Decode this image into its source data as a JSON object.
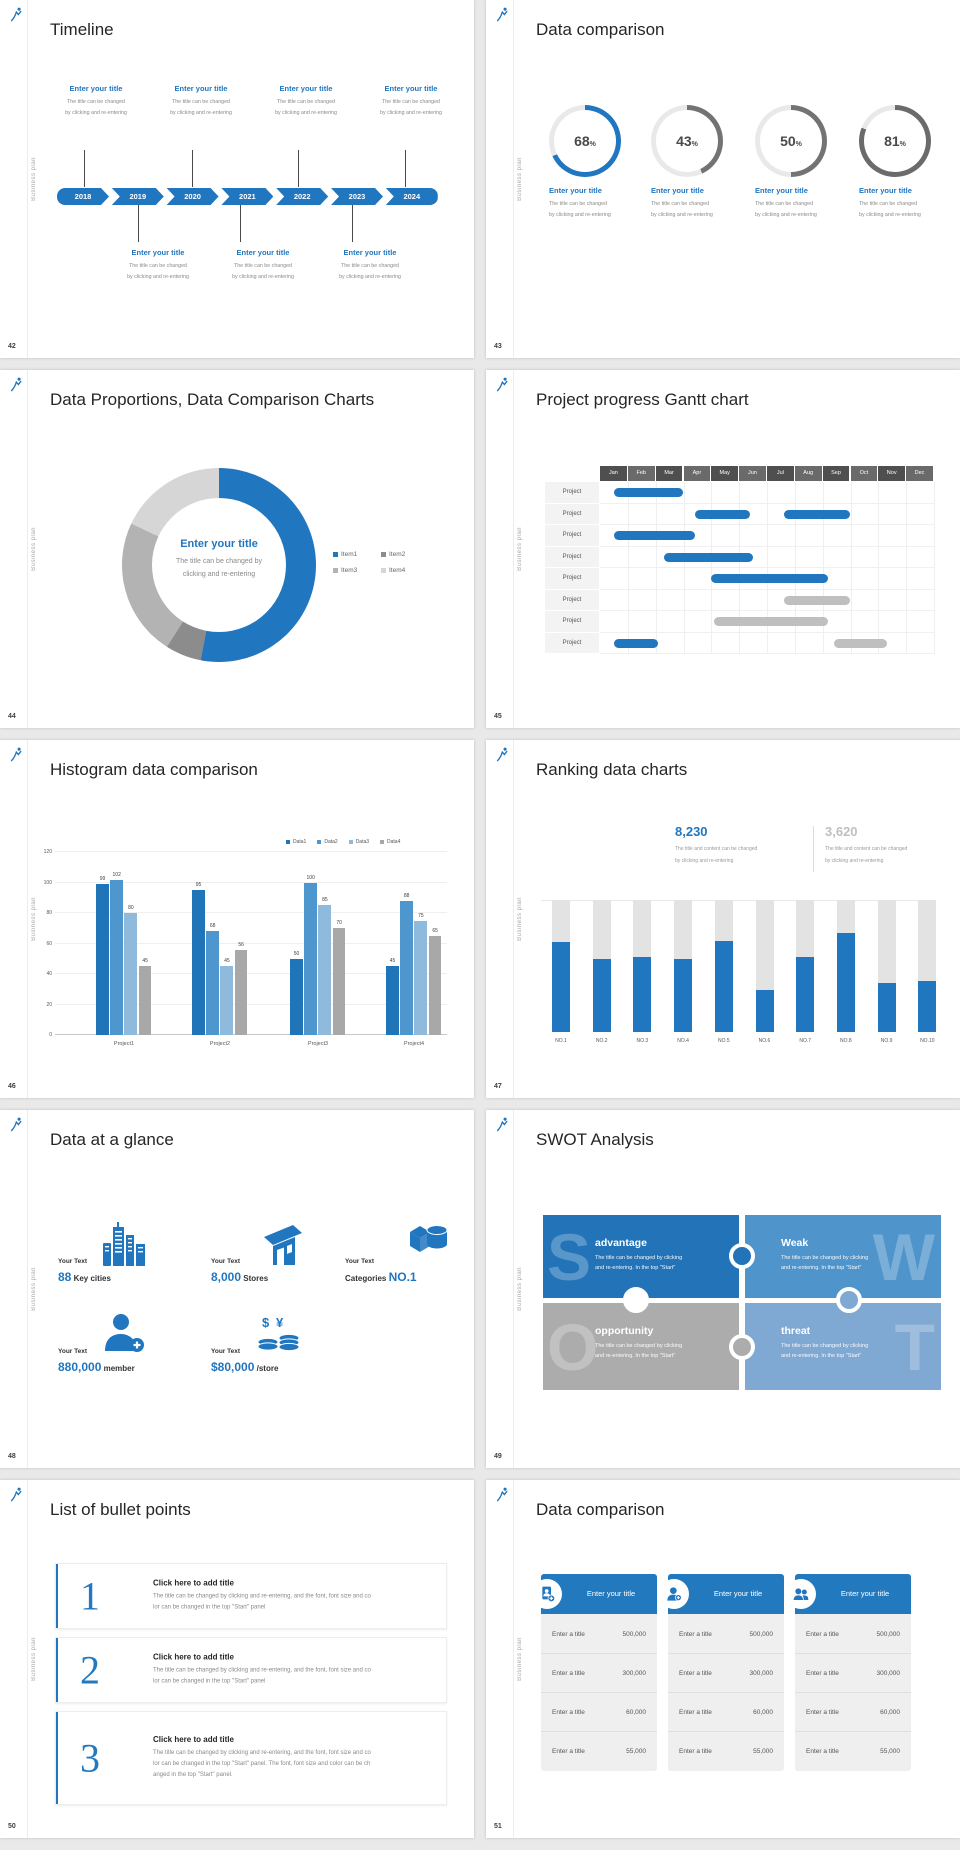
{
  "app": {
    "background": "#E9E9E9",
    "accent_color": "#2176C0"
  },
  "common": {
    "brand_vertical_text": "Business plan",
    "logo_icon": "leap-figure-logo-icon"
  },
  "slides": {
    "timeline": {
      "number": "42",
      "title": "Timeline",
      "item_title": "Enter your title",
      "item_line1": "The title can be changed",
      "item_line2": "by clicking and re-entering",
      "years": [
        "2018",
        "2019",
        "2020",
        "2021",
        "2022",
        "2023",
        "2024"
      ]
    },
    "rings": {
      "number": "43",
      "title": "Data comparison",
      "item_title": "Enter your title",
      "item_line1": "The title can be changed",
      "item_line2": "by clicking and re-entering"
    },
    "donut": {
      "number": "44",
      "title": "Data Proportions, Data Comparison Charts",
      "center_title": "Enter your title",
      "center_line1": "The title can be changed by",
      "center_line2": "clicking and re-entering"
    },
    "gantt": {
      "number": "45",
      "title": "Project progress Gantt chart"
    },
    "histogram": {
      "number": "46",
      "title": "Histogram data comparison"
    },
    "ranking": {
      "number": "47",
      "title": "Ranking data charts"
    },
    "glance": {
      "number": "48",
      "title": "Data at a glance",
      "item_label": "Your Text",
      "items": [
        {
          "pre": "",
          "value": "88",
          "post": "Key cities",
          "icon": "city-buildings-icon"
        },
        {
          "pre": "",
          "value": "8,000",
          "post": "Stores",
          "icon": "store-icon"
        },
        {
          "pre": "Categories",
          "value": "NO.1",
          "post": "",
          "icon": "goods-boxes-icon"
        },
        {
          "pre": "",
          "value": "880,000",
          "post": "member",
          "icon": "member-add-icon"
        },
        {
          "pre": "",
          "value": "$80,000",
          "post": "/store",
          "icon": "money-coins-icon"
        }
      ]
    },
    "swot": {
      "number": "49",
      "title": "SWOT Analysis",
      "body_line1": "The title can be changed by clicking",
      "body_line2": "and re-entering. In the top \"Start\"",
      "quadrants": [
        {
          "letter": "S",
          "label": "advantage",
          "color": "#2273B7"
        },
        {
          "letter": "W",
          "label": "Weak",
          "color": "#4F94CB"
        },
        {
          "letter": "O",
          "label": "opportunity",
          "color": "#ACACAC"
        },
        {
          "letter": "T",
          "label": "threat",
          "color": "#7FA8D3"
        }
      ]
    },
    "bullets": {
      "number": "50",
      "title": "List of bullet points",
      "items": [
        {
          "num": "1",
          "heading": "Click here to add title",
          "lines": [
            "The title can be changed by clicking and re-entering, and the font, font size and co",
            "lor can be changed in the top \"Start\" panel"
          ]
        },
        {
          "num": "2",
          "heading": "Click here to add title",
          "lines": [
            "The title can be changed by clicking and re-entering, and the font, font size and co",
            "lor can be changed in the top \"Start\" panel"
          ]
        },
        {
          "num": "3",
          "heading": "Click here to add title",
          "lines": [
            "The title can be changed by clicking and re-entering, and the font, font size and co",
            "lor can be changed in the top \"Start\" panel. The font, font size and color can be ch",
            "anged in the top \"Start\" panel."
          ]
        }
      ]
    },
    "tables": {
      "number": "51",
      "title": "Data comparison",
      "header": "Enter your title",
      "icons": [
        "id-card-add-icon",
        "person-add-icon",
        "people-group-icon"
      ],
      "rows": [
        {
          "label": "Enter a title",
          "value": "500,000"
        },
        {
          "label": "Enter a title",
          "value": "300,000"
        },
        {
          "label": "Enter a title",
          "value": "60,000"
        },
        {
          "label": "Enter a title",
          "value": "55,000"
        }
      ]
    }
  },
  "chart_data": [
    {
      "id": "progress-rings",
      "slide": "43",
      "type": "pie",
      "subtype": "progress-donuts",
      "values": [
        68,
        43,
        50,
        81
      ],
      "unit": "%",
      "colors": [
        "#2176C0",
        "#737373",
        "#737373",
        "#6B6B6B"
      ],
      "track_color": "#E9E9E9",
      "labels": [
        "Enter your title",
        "Enter your title",
        "Enter your title",
        "Enter your title"
      ]
    },
    {
      "id": "donut",
      "slide": "44",
      "type": "pie",
      "subtype": "donut",
      "legend": [
        "Item1",
        "Item2",
        "Item3",
        "Item4"
      ],
      "values": [
        53,
        6,
        23,
        18
      ],
      "colors": [
        "#2176C0",
        "#8C8C8C",
        "#B3B3B3",
        "#D6D6D6"
      ],
      "legend_position": "right"
    },
    {
      "id": "gantt",
      "slide": "45",
      "type": "gantt",
      "x": [
        "Jan",
        "Feb",
        "Mar",
        "Apr",
        "May",
        "Jun",
        "Jul",
        "Aug",
        "Sep",
        "Oct",
        "Nov",
        "Dec"
      ],
      "rows": [
        {
          "label": "Project",
          "bars": [
            {
              "start": 0.5,
              "end": 3.0,
              "color": "#2176C0"
            }
          ]
        },
        {
          "label": "Project",
          "bars": [
            {
              "start": 3.4,
              "end": 5.4,
              "color": "#2176C0"
            },
            {
              "start": 6.6,
              "end": 9.0,
              "color": "#2176C0"
            }
          ]
        },
        {
          "label": "Project",
          "bars": [
            {
              "start": 0.5,
              "end": 3.4,
              "color": "#2176C0"
            }
          ]
        },
        {
          "label": "Project",
          "bars": [
            {
              "start": 2.3,
              "end": 5.5,
              "color": "#2176C0"
            }
          ]
        },
        {
          "label": "Project",
          "bars": [
            {
              "start": 4.0,
              "end": 8.2,
              "color": "#2176C0"
            }
          ]
        },
        {
          "label": "Project",
          "bars": [
            {
              "start": 6.6,
              "end": 9.0,
              "color": "#BFBFBF"
            }
          ]
        },
        {
          "label": "Project",
          "bars": [
            {
              "start": 4.1,
              "end": 8.2,
              "color": "#BFBFBF"
            }
          ]
        },
        {
          "label": "Project",
          "bars": [
            {
              "start": 0.5,
              "end": 2.1,
              "color": "#2176C0"
            },
            {
              "start": 8.4,
              "end": 10.3,
              "color": "#BFBFBF"
            }
          ]
        }
      ]
    },
    {
      "id": "histogram",
      "slide": "46",
      "type": "bar",
      "categories": [
        "Project1",
        "Project2",
        "Project3",
        "Project4"
      ],
      "series": [
        {
          "name": "Data1",
          "color": "#2074B8",
          "values": [
            99,
            95,
            50,
            45
          ]
        },
        {
          "name": "Data2",
          "color": "#4D96CE",
          "values": [
            102,
            68,
            100,
            88
          ]
        },
        {
          "name": "Data3",
          "color": "#8FBADC",
          "values": [
            80,
            45,
            85,
            75
          ]
        },
        {
          "name": "Data4",
          "color": "#A8A8A8",
          "values": [
            45,
            56,
            70,
            65
          ]
        }
      ],
      "ylim": [
        0,
        120
      ],
      "yticks": [
        0,
        20,
        40,
        60,
        80,
        100,
        120
      ],
      "grid": true,
      "legend_position": "top-right",
      "data_labels": true
    },
    {
      "id": "ranking",
      "slide": "47",
      "type": "bar",
      "subtype": "fill-ratio-columns",
      "categories": [
        "NO.1",
        "NO.2",
        "NO.3",
        "NO.4",
        "NO.5",
        "NO.6",
        "NO.7",
        "NO.8",
        "NO.9",
        "NO.10"
      ],
      "values": [
        0.68,
        0.55,
        0.57,
        0.55,
        0.69,
        0.32,
        0.57,
        0.75,
        0.37,
        0.39
      ],
      "ylim": [
        0,
        1
      ],
      "bar_color": "#2176C0",
      "track_color": "#E3E3E3",
      "stats": [
        {
          "value": "8,230",
          "color": "#2176C0",
          "line1": "The title and content can be changed",
          "line2": "by clicking and re-entering"
        },
        {
          "value": "3,620",
          "color": "#BFBFBF",
          "line1": "The title and content can be changed",
          "line2": "by clicking and re-entering"
        }
      ]
    }
  ]
}
